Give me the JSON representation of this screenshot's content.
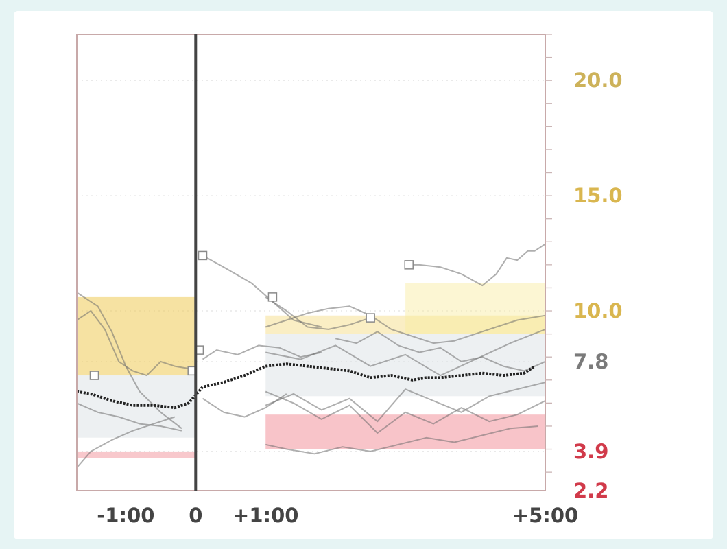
{
  "chart_data": {
    "type": "line",
    "title": "",
    "xlabel": "",
    "ylabel": "",
    "x_axis": {
      "range": [
        -1.7,
        5.0
      ],
      "ticks": [
        {
          "value": -1.0,
          "label": "-1:00"
        },
        {
          "value": 0.0,
          "label": "0"
        },
        {
          "value": 1.0,
          "label": "+1:00"
        },
        {
          "value": 5.0,
          "label": "+5:00"
        }
      ]
    },
    "y_axis": {
      "range": [
        2.2,
        22.0
      ],
      "position": "right",
      "ticks": [
        {
          "value": 20.0,
          "label": "20.0",
          "color": "#cdb25a"
        },
        {
          "value": 15.0,
          "label": "15.0",
          "color": "#d9b64f"
        },
        {
          "value": 10.0,
          "label": "10.0",
          "color": "#d9b64f"
        },
        {
          "value": 7.8,
          "label": "7.8",
          "color": "#7a7a7a"
        },
        {
          "value": 3.9,
          "label": "3.9",
          "color": "#d13a4a"
        },
        {
          "value": 2.2,
          "label": "2.2",
          "color": "#d13a4a"
        }
      ]
    },
    "event_line_at": 0,
    "grid": "dotted horizontal",
    "colors": {
      "axis": "#c8a9a9",
      "event_line": "#444444",
      "mean_line": "#222222",
      "high_band": "#f5d66c",
      "target_band": "#cfd6dc",
      "low_band": "#e8414f",
      "individual_lines": "#6e6e6e"
    },
    "bands": [
      {
        "name": "high",
        "x": [
          1.0,
          5.0
        ],
        "y": [
          9.0,
          9.8
        ],
        "color": "#f3da7c",
        "opacity": 0.45
      },
      {
        "name": "high-right",
        "x": [
          3.0,
          5.0
        ],
        "y": [
          9.0,
          11.2
        ],
        "color": "#f8ec9d",
        "opacity": 0.45
      },
      {
        "name": "target",
        "x": [
          1.0,
          5.0
        ],
        "y": [
          6.3,
          9.0
        ],
        "color": "#d7dde2",
        "opacity": 0.45
      },
      {
        "name": "low",
        "x": [
          1.0,
          5.0
        ],
        "y": [
          4.0,
          5.5
        ],
        "color": "#e84857",
        "opacity": 0.32
      },
      {
        "name": "high-pre",
        "x": [
          -1.7,
          0.0
        ],
        "y": [
          7.2,
          10.6
        ],
        "color": "#efcb55",
        "opacity": 0.55
      },
      {
        "name": "target-pre",
        "x": [
          -1.7,
          0.0
        ],
        "y": [
          4.5,
          7.2
        ],
        "color": "#d7dde2",
        "opacity": 0.45
      },
      {
        "name": "low-pre",
        "x": [
          -1.7,
          0.0
        ],
        "y": [
          3.6,
          3.9
        ],
        "color": "#e84857",
        "opacity": 0.3
      }
    ],
    "series": [
      {
        "role": "mean",
        "x": [
          -1.7,
          -1.5,
          -1.2,
          -0.9,
          -0.6,
          -0.3,
          -0.1,
          0.1,
          0.4,
          0.7,
          1.0,
          1.3,
          1.6,
          1.9,
          2.2,
          2.5,
          2.8,
          3.1,
          3.3,
          3.5,
          3.8,
          4.1,
          4.4,
          4.7,
          4.85
        ],
        "y": [
          6.5,
          6.4,
          6.1,
          5.9,
          5.9,
          5.8,
          6.0,
          6.7,
          6.9,
          7.2,
          7.6,
          7.7,
          7.6,
          7.5,
          7.4,
          7.1,
          7.2,
          7.0,
          7.1,
          7.1,
          7.2,
          7.3,
          7.2,
          7.3,
          7.6
        ]
      },
      {
        "role": "individual",
        "x": [
          -1.7,
          -1.5,
          -1.3,
          -1.1,
          -0.9,
          -0.7,
          -0.5,
          -0.3,
          -0.1
        ],
        "y": [
          9.6,
          10.0,
          9.2,
          7.8,
          7.4,
          7.2,
          7.8,
          7.6,
          7.5
        ]
      },
      {
        "role": "individual",
        "x": [
          -1.7,
          -1.4,
          -1.2,
          -1.0,
          -0.8,
          -0.5,
          -0.2
        ],
        "y": [
          10.8,
          10.2,
          9.1,
          7.6,
          6.5,
          5.6,
          4.9
        ]
      },
      {
        "role": "individual",
        "x": [
          -1.7,
          -1.4,
          -1.1,
          -0.8,
          -0.5,
          -0.2
        ],
        "y": [
          6.0,
          5.6,
          5.4,
          5.1,
          5.0,
          4.8
        ]
      },
      {
        "role": "individual",
        "x": [
          -1.7,
          -1.5,
          -1.2,
          -0.9,
          -0.6,
          -0.3
        ],
        "y": [
          3.2,
          3.9,
          4.4,
          4.8,
          5.1,
          5.4
        ]
      },
      {
        "role": "individual",
        "x": [
          0.1,
          0.4,
          0.8,
          1.1,
          1.4,
          1.8
        ],
        "y": [
          12.4,
          11.9,
          11.2,
          10.4,
          9.6,
          9.3
        ]
      },
      {
        "role": "individual",
        "x": [
          1.0,
          1.3,
          1.6,
          1.9,
          2.2,
          2.5
        ],
        "y": [
          10.6,
          10.0,
          9.3,
          9.2,
          9.4,
          9.7
        ]
      },
      {
        "role": "individual",
        "x": [
          3.0,
          3.2,
          3.5,
          3.8,
          4.1,
          4.3,
          4.45,
          4.6,
          4.75,
          4.85,
          5.0
        ],
        "y": [
          12.0,
          12.0,
          11.9,
          11.6,
          11.1,
          11.6,
          12.3,
          12.2,
          12.6,
          12.6,
          12.9
        ]
      },
      {
        "role": "individual",
        "x": [
          1.0,
          1.5,
          2.0,
          2.5,
          3.0,
          3.5,
          4.0,
          4.5,
          5.0
        ],
        "y": [
          8.2,
          7.9,
          8.5,
          7.6,
          8.1,
          7.2,
          7.9,
          8.6,
          9.2
        ]
      },
      {
        "role": "individual",
        "x": [
          1.0,
          1.4,
          1.8,
          2.2,
          2.6,
          3.0,
          3.4,
          3.8,
          4.2,
          4.6,
          5.0
        ],
        "y": [
          6.5,
          6.0,
          5.3,
          5.9,
          4.7,
          5.6,
          5.1,
          5.8,
          5.2,
          5.5,
          6.1
        ]
      },
      {
        "role": "individual",
        "x": [
          1.0,
          1.3,
          1.7,
          2.1,
          2.5,
          2.9,
          3.3,
          3.7,
          4.1,
          4.5,
          4.9
        ],
        "y": [
          4.2,
          4.0,
          3.8,
          4.1,
          3.9,
          4.2,
          4.5,
          4.3,
          4.6,
          4.9,
          5.0
        ]
      },
      {
        "role": "individual",
        "x": [
          1.0,
          1.4,
          1.8,
          2.2,
          2.6,
          3.0,
          3.4,
          3.8,
          4.2,
          4.6,
          5.0
        ],
        "y": [
          5.9,
          6.4,
          5.7,
          6.2,
          5.2,
          6.6,
          6.1,
          5.6,
          6.3,
          6.6,
          6.9
        ]
      },
      {
        "role": "individual",
        "x": [
          1.0,
          1.3,
          1.6,
          1.9,
          2.2,
          2.5,
          2.8,
          3.1,
          3.4,
          3.7,
          4.0,
          4.3,
          4.6,
          5.0
        ],
        "y": [
          9.3,
          9.6,
          9.9,
          10.1,
          10.2,
          9.8,
          9.2,
          8.9,
          8.6,
          8.7,
          9.0,
          9.3,
          9.6,
          9.8
        ]
      },
      {
        "role": "individual",
        "x": [
          0.1,
          0.3,
          0.6,
          0.9,
          1.2,
          1.5,
          1.8
        ],
        "y": [
          7.9,
          8.3,
          8.1,
          8.5,
          8.4,
          8.0,
          8.2
        ]
      },
      {
        "role": "individual",
        "x": [
          0.1,
          0.4,
          0.7,
          1.0,
          1.3
        ],
        "y": [
          6.2,
          5.6,
          5.4,
          5.8,
          6.4
        ]
      },
      {
        "role": "individual",
        "x": [
          2.0,
          2.3,
          2.6,
          2.9,
          3.2,
          3.5,
          3.8,
          4.1,
          4.4,
          4.7,
          5.0
        ],
        "y": [
          8.8,
          8.6,
          9.1,
          8.5,
          8.2,
          8.4,
          7.8,
          8.0,
          7.6,
          7.4,
          7.8
        ]
      }
    ],
    "markers": [
      {
        "x": 0.1,
        "y": 12.4
      },
      {
        "x": 0.05,
        "y": 8.3
      },
      {
        "x": -0.05,
        "y": 7.4
      },
      {
        "x": -1.45,
        "y": 7.2
      },
      {
        "x": 2.5,
        "y": 9.7
      },
      {
        "x": 3.05,
        "y": 12.0
      },
      {
        "x": 1.1,
        "y": 10.6
      }
    ]
  }
}
